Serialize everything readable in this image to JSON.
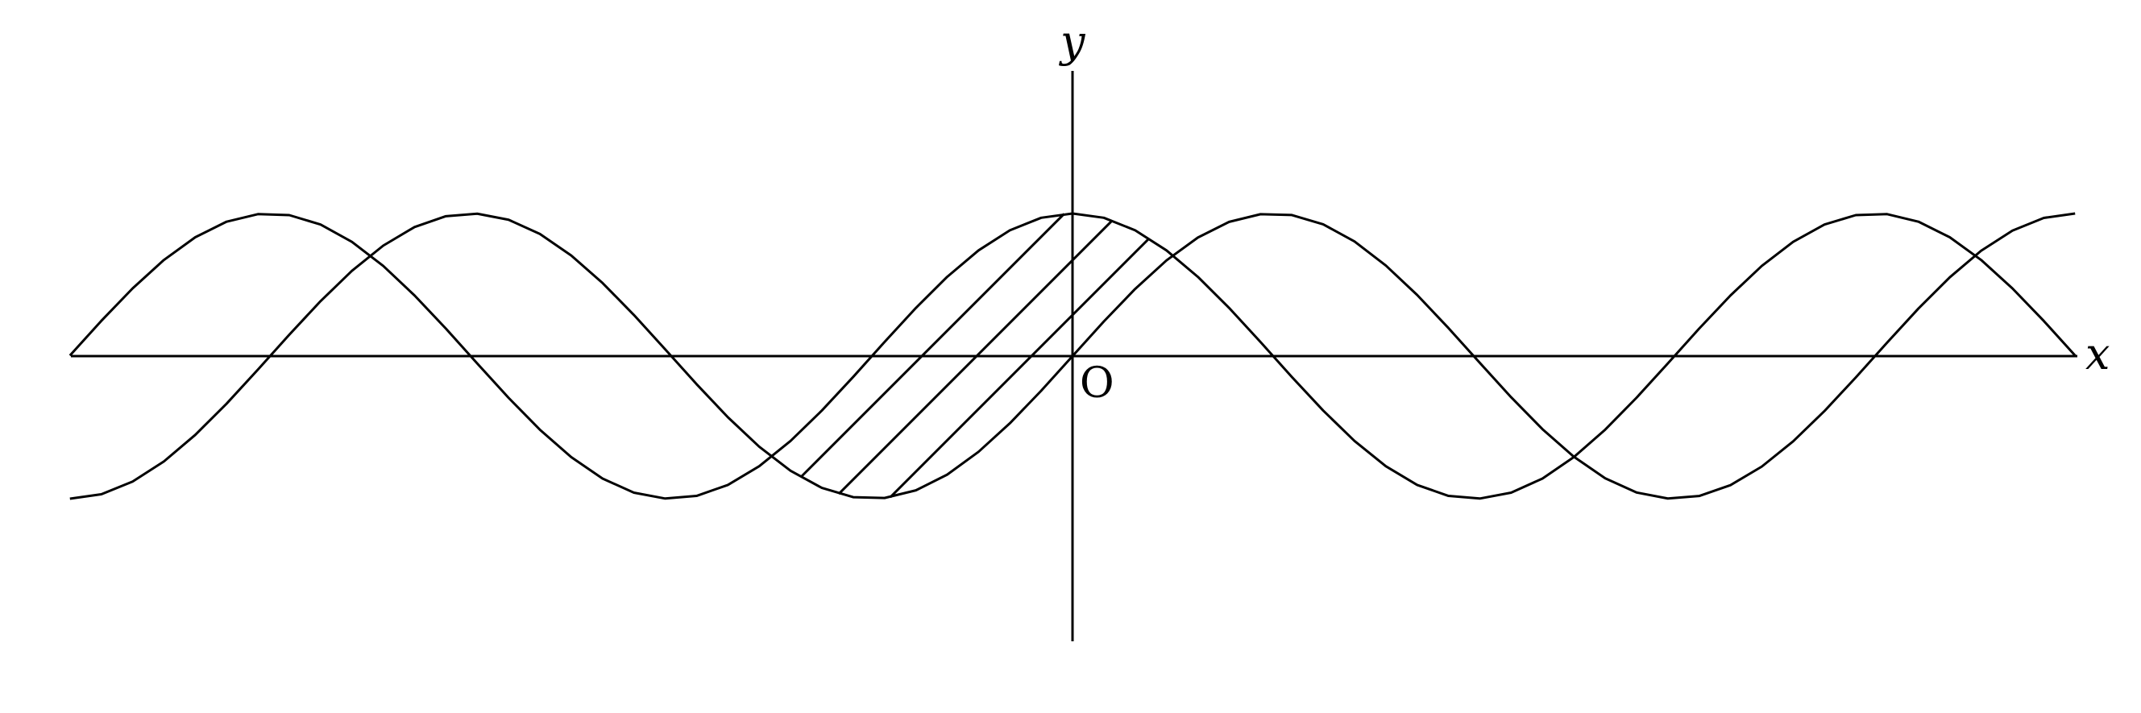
{
  "figure": {
    "x_axis_label": "x",
    "y_axis_label": "y",
    "origin_label": "O"
  },
  "chart_data": {
    "type": "line",
    "x_range": [
      -7.85,
      7.85
    ],
    "y_range": [
      -2.2,
      2.2
    ],
    "series": [
      {
        "function": "cos",
        "amplitude": 1,
        "period": 6.2832
      },
      {
        "function": "sin",
        "amplitude": 1,
        "period": 6.2832
      }
    ],
    "shaded_region": {
      "between": [
        "cos",
        "sin"
      ],
      "x_from": -2.3562,
      "x_to": 0.7854,
      "style": "diagonal-hatch"
    }
  }
}
